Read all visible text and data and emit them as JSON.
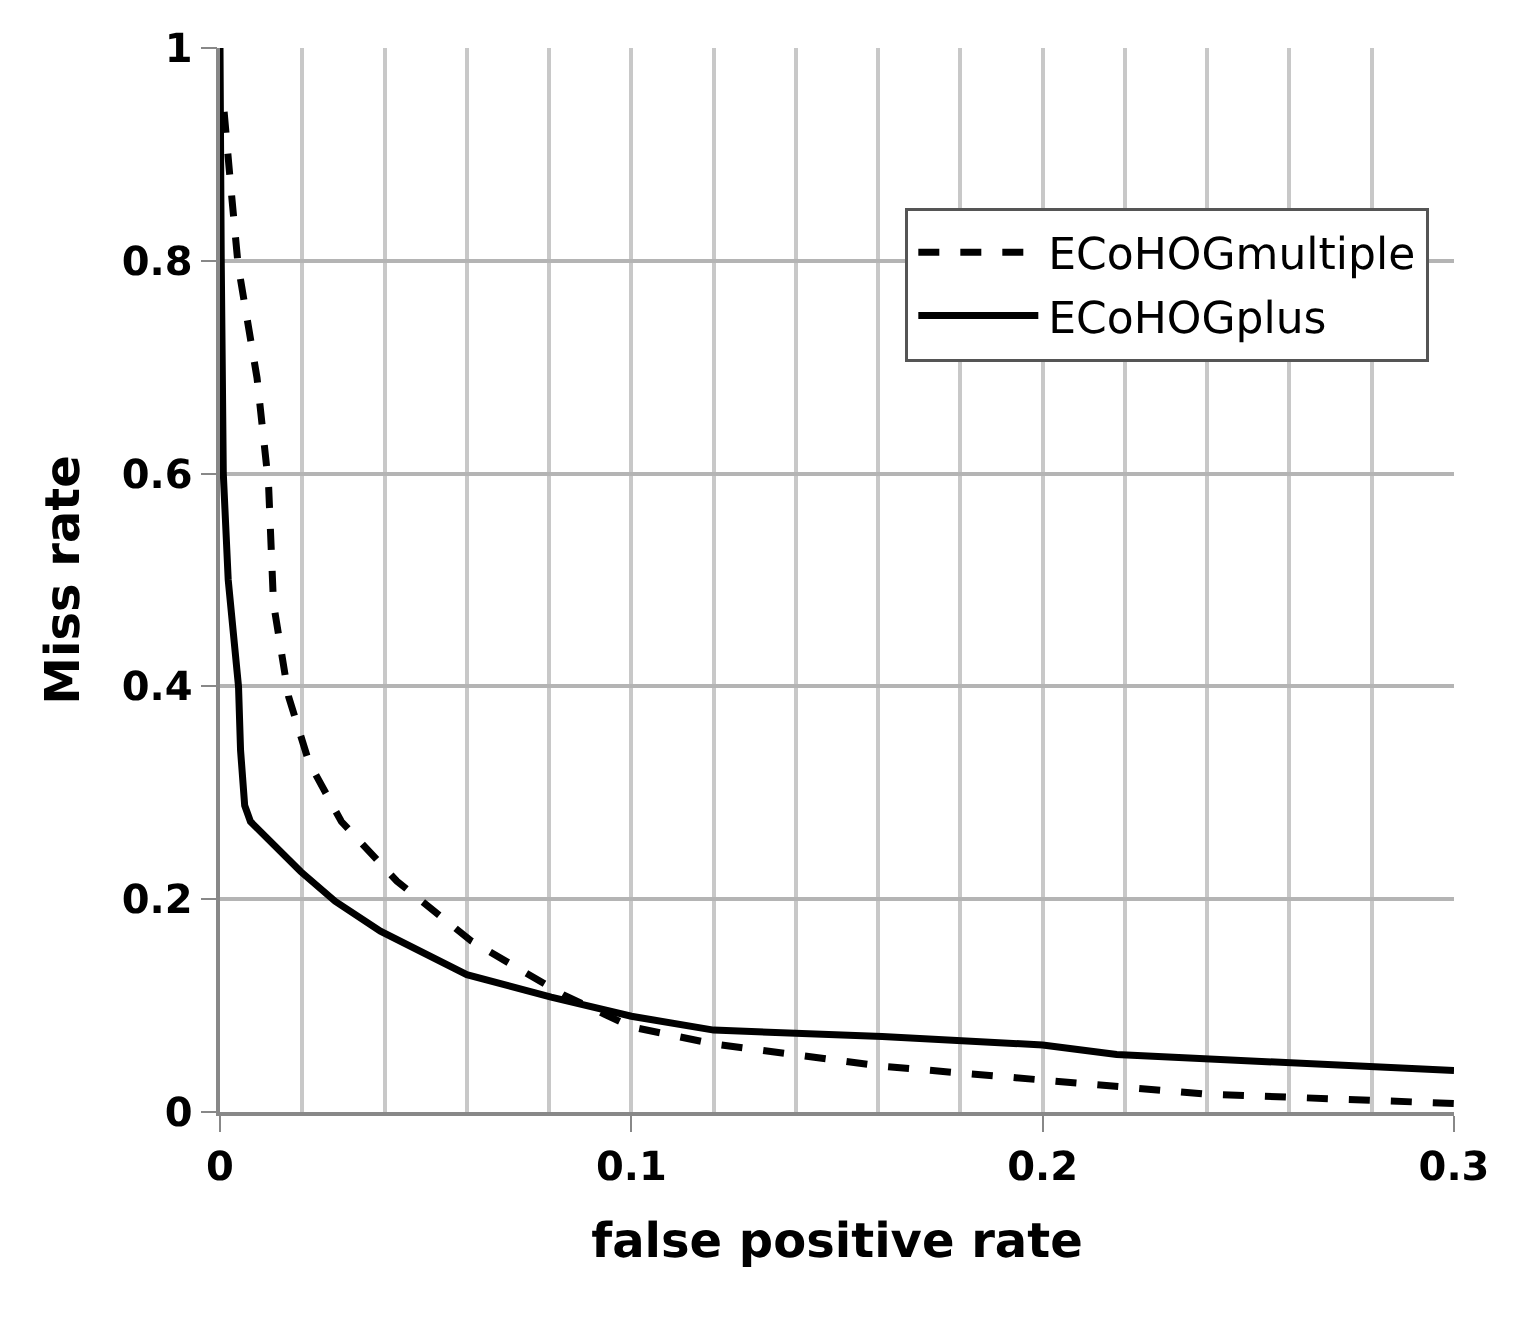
{
  "chart_data": {
    "type": "line",
    "xlabel": "false positive rate",
    "ylabel": "Miss rate",
    "xlim": [
      0,
      0.3
    ],
    "ylim": [
      0,
      1
    ],
    "xticks": [
      0,
      {
        "value": 0.02,
        "label": null
      },
      {
        "value": 0.04,
        "label": null
      },
      {
        "value": 0.06,
        "label": null
      },
      {
        "value": 0.08,
        "label": null
      },
      0.1,
      {
        "value": 0.12,
        "label": null
      },
      {
        "value": 0.14,
        "label": null
      },
      {
        "value": 0.16,
        "label": null
      },
      {
        "value": 0.18,
        "label": null
      },
      0.2,
      {
        "value": 0.22,
        "label": null
      },
      {
        "value": 0.24,
        "label": null
      },
      {
        "value": 0.26,
        "label": null
      },
      {
        "value": 0.28,
        "label": null
      },
      0.3
    ],
    "yticks": [
      0,
      0.2,
      0.4,
      0.6,
      0.8,
      1
    ],
    "grid": true,
    "legend": "top right",
    "marker": "none",
    "series": [
      {
        "name": "ECoHOGmultiple",
        "color": "#000000",
        "line_style": "dashed",
        "x": [
          0.001,
          0.0025,
          0.0044,
          0.009,
          0.0118,
          0.013,
          0.0167,
          0.0216,
          0.0295,
          0.043,
          0.061,
          0.0835,
          0.1,
          0.12,
          0.161,
          0.2,
          0.239,
          0.3
        ],
        "values": [
          0.94,
          0.875,
          0.796,
          0.69,
          0.59,
          0.478,
          0.39,
          0.329,
          0.273,
          0.217,
          0.161,
          0.11,
          0.08,
          0.064,
          0.043,
          0.03,
          0.017,
          0.008
        ]
      },
      {
        "name": "ECoHOGplus",
        "color": "#000000",
        "line_style": "solid",
        "x": [
          0,
          0.0003,
          0.0008,
          0.002,
          0.0045,
          0.005,
          0.006,
          0.0074,
          0.0196,
          0.028,
          0.039,
          0.06,
          0.0805,
          0.1,
          0.12,
          0.161,
          0.2,
          0.218,
          0.3
        ],
        "values": [
          1,
          0.8,
          0.6,
          0.5,
          0.4,
          0.34,
          0.288,
          0.273,
          0.226,
          0.198,
          0.17,
          0.129,
          0.108,
          0.09,
          0.077,
          0.071,
          0.063,
          0.054,
          0.039
        ]
      }
    ]
  }
}
